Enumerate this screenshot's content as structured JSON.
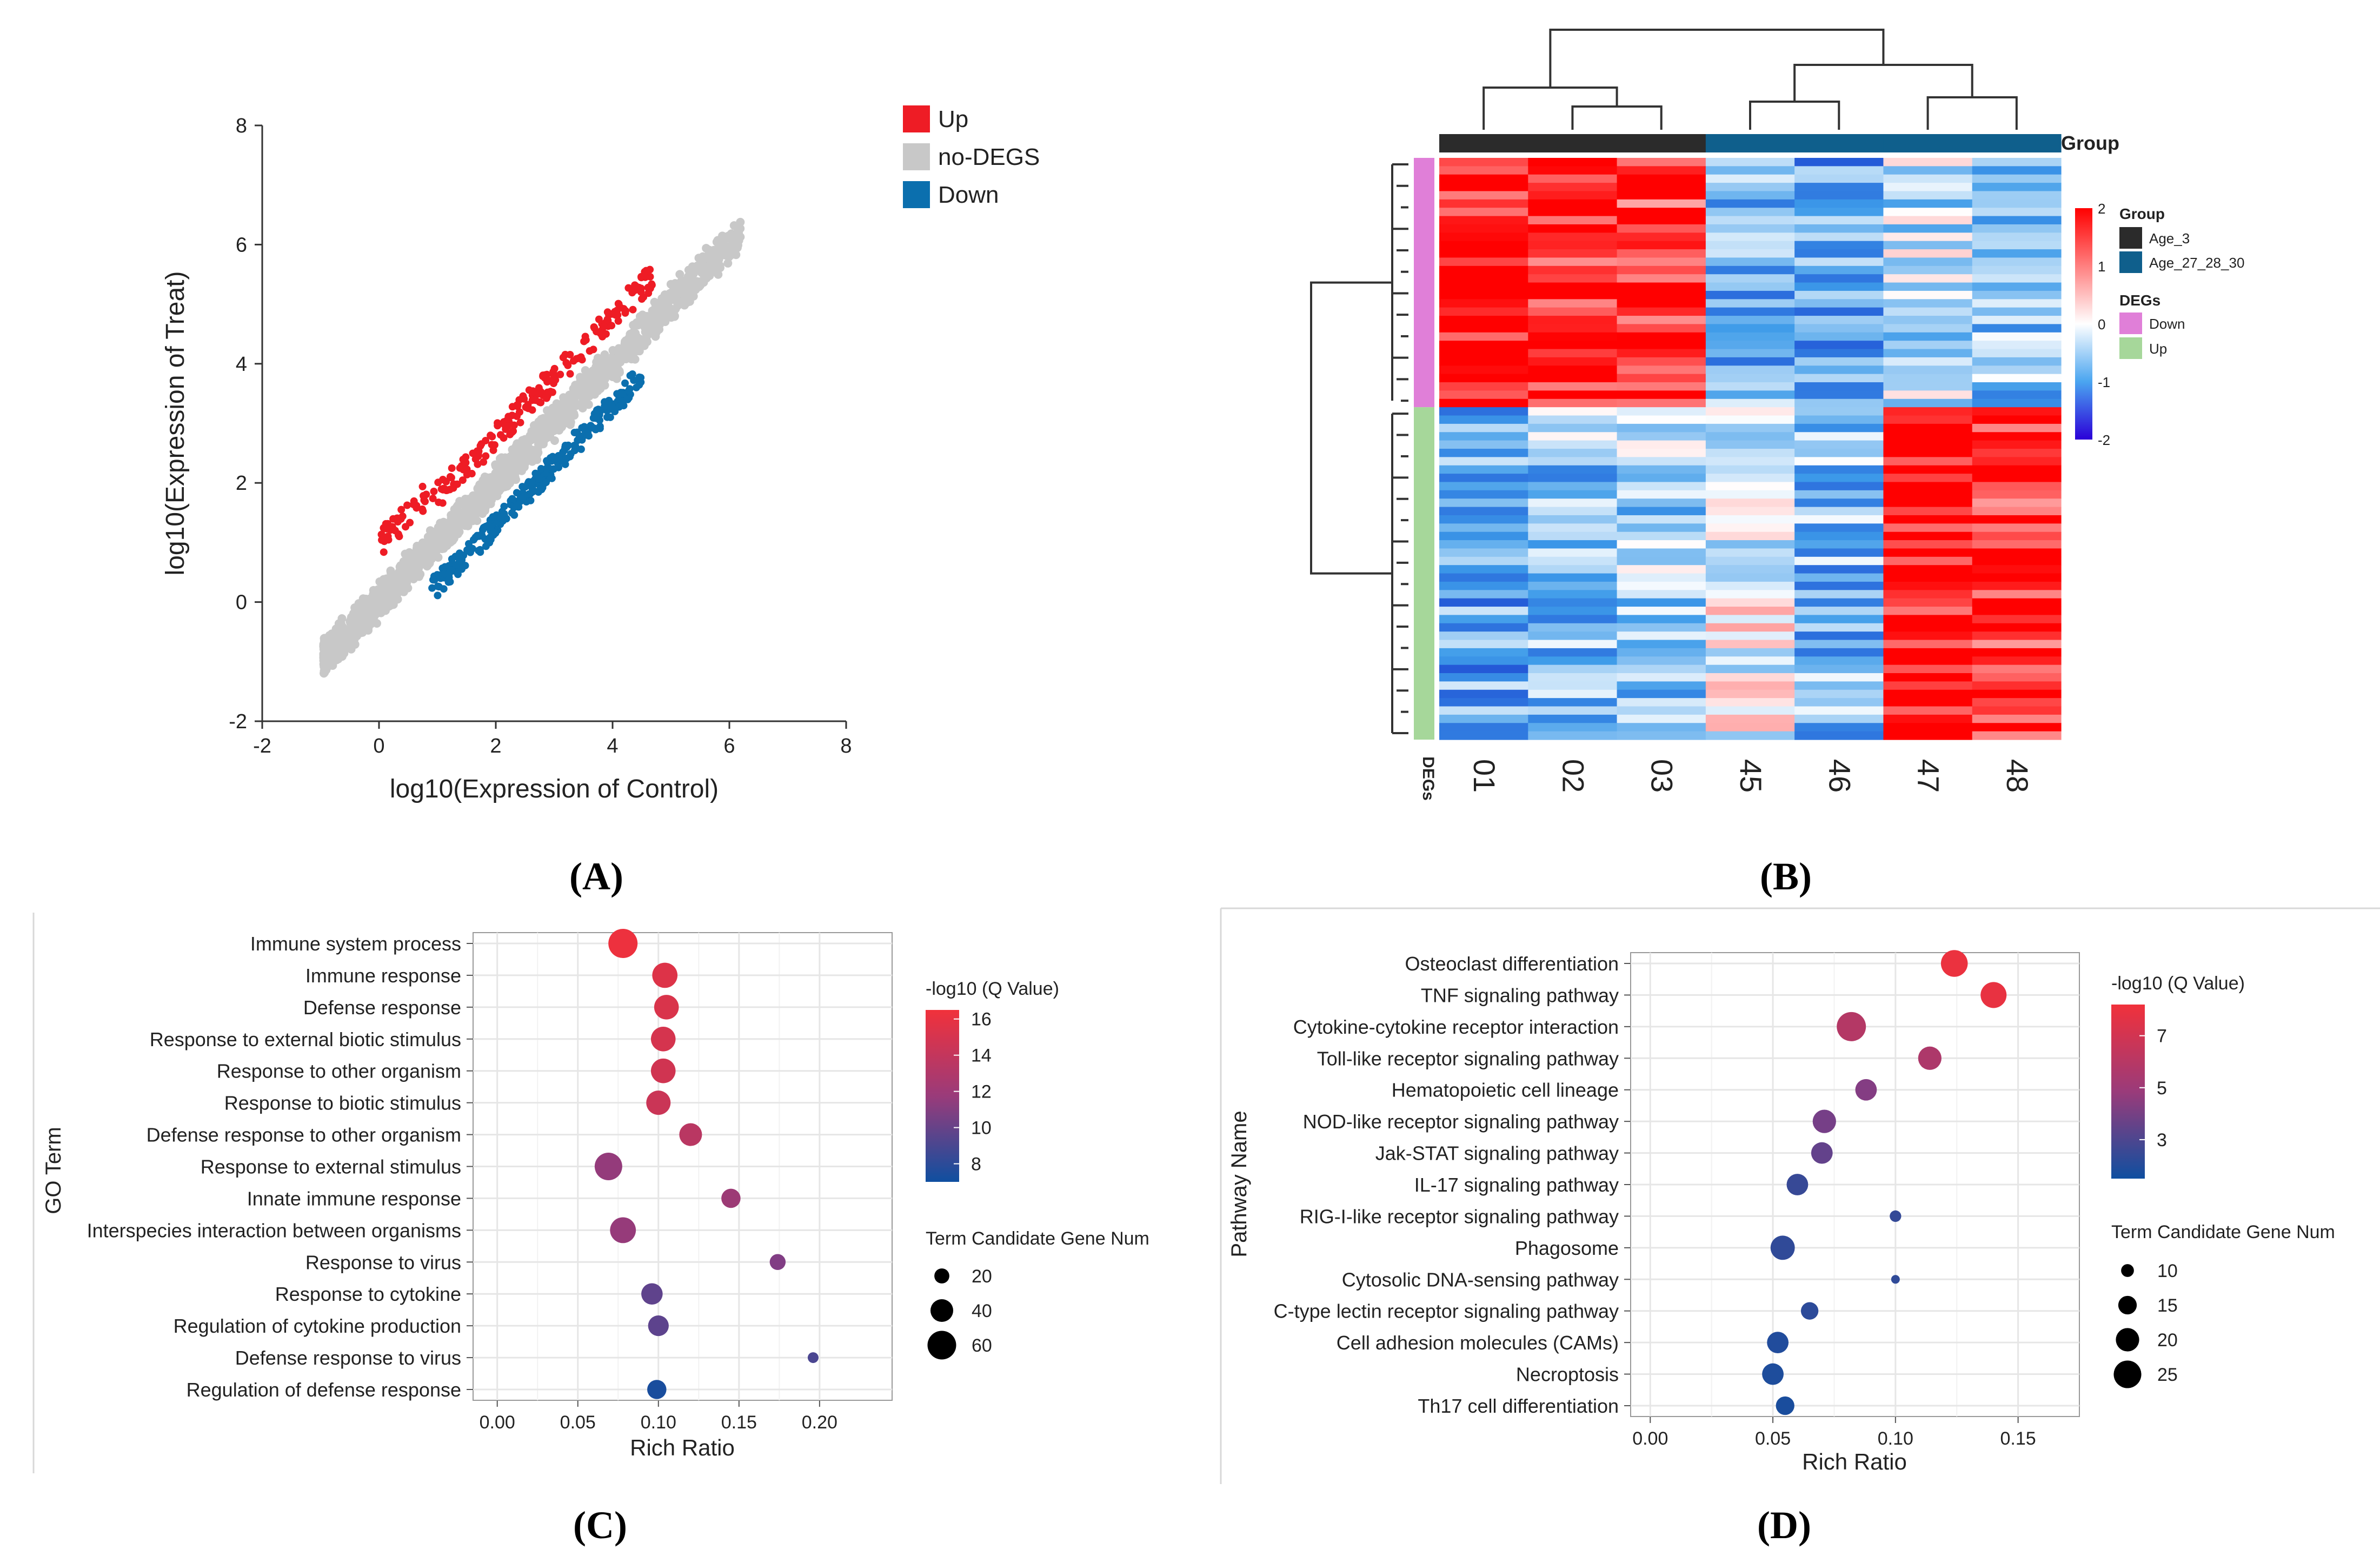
{
  "panel_labels": [
    "(A)",
    "(B)",
    "(C)",
    "(D)"
  ],
  "chart_data": [
    {
      "panel": "A",
      "type": "scatter",
      "title": "",
      "xlabel": "log10(Expression of Control)",
      "ylabel": "log10(Expression of Treat)",
      "xlim": [
        -2,
        8
      ],
      "ylim": [
        -2,
        8
      ],
      "xticks": [
        "-2",
        "0",
        "2",
        "4",
        "6",
        "8"
      ],
      "yticks": [
        "-2",
        "0",
        "2",
        "4",
        "6",
        "8"
      ],
      "legend": [
        {
          "label": "Up",
          "color": "#ee1c25"
        },
        {
          "label": "no-DEGS",
          "color": "#c8c8c8"
        },
        {
          "label": "Down",
          "color": "#0b6fae"
        }
      ],
      "series": [
        {
          "name": "no-DEGS",
          "cloud": {
            "x_start": -0.95,
            "x_end": 6.2,
            "spread": 0.35
          }
        },
        {
          "name": "Up",
          "x_range": [
            0,
            4.7
          ],
          "offset": 0.55
        },
        {
          "name": "Down",
          "x_range": [
            0.9,
            4.5
          ],
          "offset": -0.5
        }
      ]
    },
    {
      "panel": "B",
      "type": "heatmap",
      "columns": [
        "01",
        "02",
        "03",
        "45",
        "46",
        "47",
        "48"
      ],
      "group_label": "Group",
      "degs_label": "DEGs",
      "color_scale": {
        "min": -2,
        "max": 2,
        "ticks": [
          "2",
          "1",
          "0",
          "-1",
          "-2"
        ]
      },
      "legend": {
        "group_title": "Group",
        "groups": [
          {
            "label": "Age_3",
            "color": "#2b2b2b"
          },
          {
            "label": "Age_27_28_30",
            "color": "#0f5f8c"
          }
        ],
        "degs_title": "DEGs",
        "degs": [
          {
            "label": "Down",
            "color": "#e07fd8"
          },
          {
            "label": "Up",
            "color": "#a6d79a"
          }
        ]
      },
      "column_groups": [
        "Age_3",
        "Age_3",
        "Age_3",
        "Age_27_28_30",
        "Age_27_28_30",
        "Age_27_28_30",
        "Age_27_28_30"
      ],
      "row_blocks": [
        {
          "deg": "Down",
          "rows": 30,
          "mean_by_column": [
            1.6,
            1.5,
            1.4,
            -0.9,
            -1.1,
            -0.4,
            -0.8
          ]
        },
        {
          "deg": "Up",
          "rows": 40,
          "mean_by_column": [
            -1.0,
            -0.7,
            -0.6,
            -0.1,
            -0.8,
            1.7,
            1.5
          ]
        }
      ]
    },
    {
      "panel": "C",
      "type": "scatter",
      "xlabel": "Rich Ratio",
      "ylabel": "GO Term",
      "xlim": [
        -0.015,
        0.245
      ],
      "xticks": [
        "0.00",
        "0.05",
        "0.10",
        "0.15",
        "0.20"
      ],
      "color_title": "-log10 (Q Value)",
      "color_range": [
        7,
        16.5
      ],
      "color_ticks": [
        "16",
        "14",
        "12",
        "10",
        "8"
      ],
      "size_title": "Term Candidate Gene Num",
      "size_legend": [
        "20",
        "40",
        "60"
      ],
      "categories": [
        "Immune system process",
        "Immune response",
        "Defense response",
        "Response to external biotic stimulus",
        "Response to other organism",
        "Response to biotic stimulus",
        "Defense response to other organism",
        "Response to external stimulus",
        "Innate immune response",
        "Interspecies interaction between organisms",
        "Response to virus",
        "Response to cytokine",
        "Regulation of cytokine production",
        "Defense response to virus",
        "Regulation of defense response"
      ],
      "x": [
        0.078,
        0.104,
        0.105,
        0.103,
        0.103,
        0.1,
        0.12,
        0.069,
        0.145,
        0.078,
        0.174,
        0.096,
        0.1,
        0.196,
        0.099
      ],
      "size": [
        62,
        48,
        46,
        46,
        46,
        45,
        40,
        56,
        30,
        50,
        22,
        36,
        34,
        12,
        30
      ],
      "q": [
        16.3,
        15.6,
        15.4,
        15.2,
        15.0,
        14.7,
        13.9,
        12.2,
        12.6,
        12.3,
        11.4,
        10.1,
        10.0,
        9.3,
        7.4
      ]
    },
    {
      "panel": "D",
      "type": "scatter",
      "xlabel": "Rich Ratio",
      "ylabel": "Pathway Name",
      "xlim": [
        -0.008,
        0.175
      ],
      "xticks": [
        "0.00",
        "0.05",
        "0.10",
        "0.15"
      ],
      "color_title": "-log10 (Q Value)",
      "color_range": [
        1.5,
        8.2
      ],
      "color_ticks": [
        "7",
        "5",
        "3"
      ],
      "size_title": "Term Candidate Gene Num",
      "size_legend": [
        "10",
        "15",
        "20",
        "25"
      ],
      "categories": [
        "Osteoclast differentiation",
        "TNF signaling pathway",
        "Cytokine-cytokine receptor interaction",
        "Toll-like receptor signaling pathway",
        "Hematopoietic cell lineage",
        "NOD-like receptor signaling pathway",
        "Jak-STAT signaling pathway",
        "IL-17 signaling pathway",
        "RIG-I-like receptor signaling pathway",
        "Phagosome",
        "Cytosolic DNA-sensing pathway",
        "C-type lectin receptor signaling pathway",
        "Cell adhesion molecules (CAMs)",
        "Necroptosis",
        "Th17 cell differentiation"
      ],
      "x": [
        0.124,
        0.14,
        0.082,
        0.114,
        0.088,
        0.071,
        0.07,
        0.06,
        0.1,
        0.054,
        0.1,
        0.065,
        0.052,
        0.05,
        0.055
      ],
      "size": [
        24,
        23,
        27,
        20,
        18,
        20,
        18,
        18,
        9,
        21,
        7,
        14,
        18,
        18,
        15
      ],
      "q": [
        8.0,
        7.9,
        6.2,
        6.0,
        4.7,
        4.3,
        3.8,
        2.6,
        2.5,
        2.4,
        2.4,
        2.3,
        2.0,
        1.9,
        1.8
      ]
    }
  ]
}
